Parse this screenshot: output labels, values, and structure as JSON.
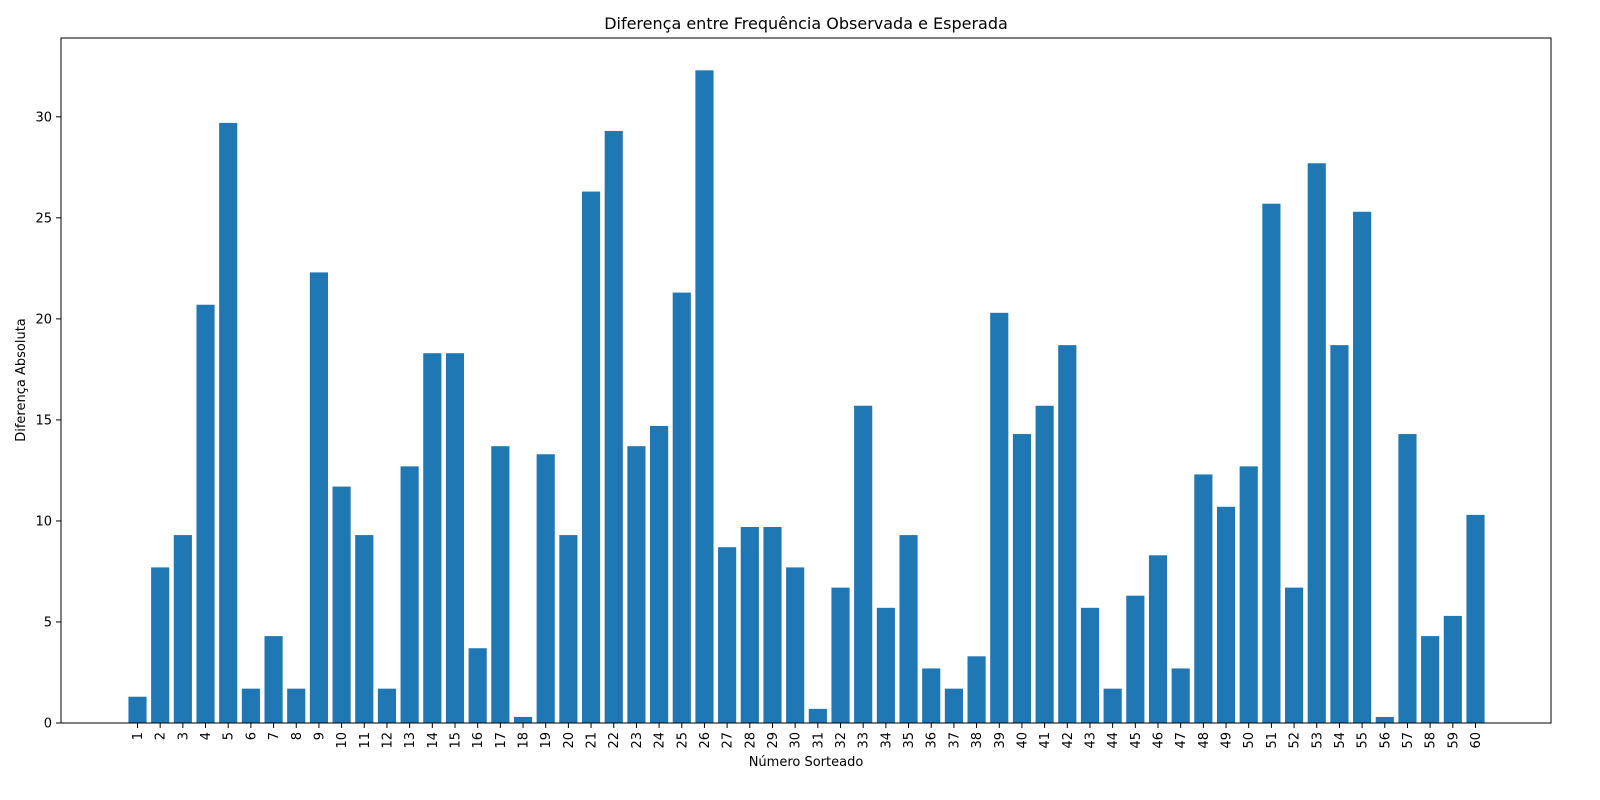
{
  "chart_data": {
    "type": "bar",
    "title": "Diferença entre Frequência Observada e Esperada",
    "xlabel": "Número Sorteado",
    "ylabel": "Diferença Absoluta",
    "categories": [
      "1",
      "2",
      "3",
      "4",
      "5",
      "6",
      "7",
      "8",
      "9",
      "10",
      "11",
      "12",
      "13",
      "14",
      "15",
      "16",
      "17",
      "18",
      "19",
      "20",
      "21",
      "22",
      "23",
      "24",
      "25",
      "26",
      "27",
      "28",
      "29",
      "30",
      "31",
      "32",
      "33",
      "34",
      "35",
      "36",
      "37",
      "38",
      "39",
      "40",
      "41",
      "42",
      "43",
      "44",
      "45",
      "46",
      "47",
      "48",
      "49",
      "50",
      "51",
      "52",
      "53",
      "54",
      "55",
      "56",
      "57",
      "58",
      "59",
      "60"
    ],
    "values": [
      1.3,
      7.7,
      9.3,
      20.7,
      29.7,
      1.7,
      4.3,
      1.7,
      22.3,
      11.7,
      9.3,
      1.7,
      12.7,
      18.3,
      18.3,
      3.7,
      13.7,
      0.3,
      13.3,
      9.3,
      26.3,
      29.3,
      13.7,
      14.7,
      21.3,
      32.3,
      8.7,
      9.7,
      9.7,
      7.7,
      0.7,
      6.7,
      15.7,
      5.7,
      9.3,
      2.7,
      1.7,
      3.3,
      20.3,
      14.3,
      15.7,
      18.7,
      5.7,
      1.7,
      6.3,
      8.3,
      2.7,
      12.3,
      10.7,
      12.7,
      25.7,
      6.7,
      27.7,
      18.7,
      25.3,
      0.3,
      14.3,
      4.3,
      5.3,
      10.3
    ],
    "ylim": [
      0,
      33.9
    ],
    "yticks": [
      0,
      5,
      10,
      15,
      20,
      25,
      30
    ],
    "grid": false,
    "legend": "none",
    "bar_color": "#1f77b4"
  }
}
